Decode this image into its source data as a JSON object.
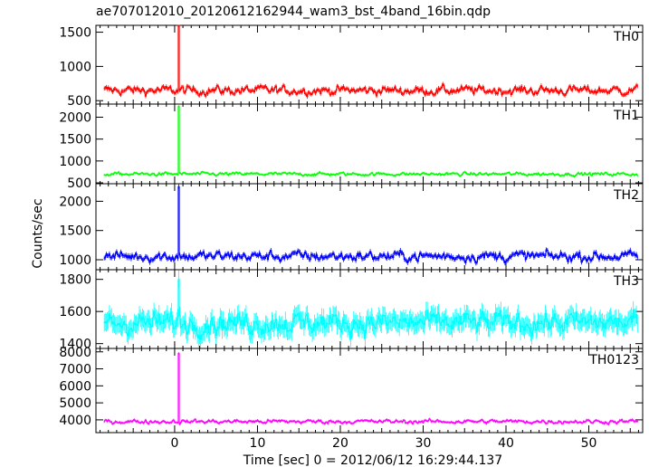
{
  "chart_data": {
    "type": "line",
    "title": "ae707012010_20120612162944_wam3_bst_4band_16bin.qdp",
    "xlabel": "Time [sec] 0 = 2012/06/12 16:29:44.137",
    "ylabel": "Counts/sec",
    "xlim": [
      -9.5,
      56.5
    ],
    "x_ticks": [
      0,
      10,
      20,
      30,
      40,
      50
    ],
    "x_start": -8.5,
    "x_end": 55.9,
    "x_step": 0.125,
    "burst_time": 0.5,
    "panels": [
      {
        "name": "TH0",
        "color": "#ff0000",
        "ylim": [
          450,
          1600
        ],
        "yticks": [
          500,
          1000,
          1500
        ],
        "baseline": 650,
        "noise": 60,
        "error": 30,
        "peak": 1600
      },
      {
        "name": "TH1",
        "color": "#00ff00",
        "ylim": [
          480,
          2300
        ],
        "yticks": [
          500,
          1000,
          1500,
          2000
        ],
        "baseline": 700,
        "noise": 35,
        "error": 25,
        "peak": 2250
      },
      {
        "name": "TH2",
        "color": "#0000ff",
        "ylim": [
          830,
          2300
        ],
        "yticks": [
          1000,
          1500,
          2000
        ],
        "baseline": 1060,
        "noise": 80,
        "error": 40,
        "peak": 2250
      },
      {
        "name": "TH3",
        "color": "#00ffff",
        "ylim": [
          1370,
          1860
        ],
        "yticks": [
          1400,
          1600,
          1800
        ],
        "baseline": 1530,
        "noise": 60,
        "error": 55,
        "peak": 1800
      },
      {
        "name": "TH0123",
        "color": "#ff00ff",
        "ylim": [
          3250,
          8200
        ],
        "yticks": [
          4000,
          5000,
          6000,
          7000,
          8000
        ],
        "baseline": 3900,
        "noise": 110,
        "error": 70,
        "peak": 7900
      }
    ]
  }
}
